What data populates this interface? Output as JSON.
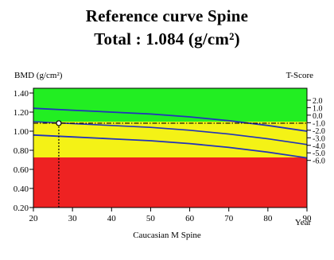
{
  "header": {
    "title": "Reference curve Spine",
    "subtitle": "Total :  1.084 (g/cm²)"
  },
  "chart_data": {
    "type": "line",
    "title": "Reference curve Spine",
    "subtitle": "Total :  1.084 (g/cm²)",
    "ylabel": "BMD (g/cm²)",
    "y2label": "T-Score",
    "xlabel": "Year",
    "footer": "Caucasian M Spine",
    "xlim": [
      20,
      90
    ],
    "ylim": [
      0.2,
      1.45
    ],
    "x_ticks": [
      20,
      30,
      40,
      50,
      60,
      70,
      80,
      90
    ],
    "y_ticks": [
      0.2,
      0.4,
      0.6,
      0.8,
      1.0,
      1.2,
      1.4
    ],
    "y_tick_labels": [
      "0.20",
      "0.40",
      "0.60",
      "0.80",
      "1.00",
      "1.20",
      "1.40"
    ],
    "t_score_ticks": [
      {
        "bmd": 1.325,
        "label": "2.0"
      },
      {
        "bmd": 1.247,
        "label": "1.0"
      },
      {
        "bmd": 1.168,
        "label": "0.0"
      },
      {
        "bmd": 1.089,
        "label": "-1.0"
      },
      {
        "bmd": 1.01,
        "label": "-2.0"
      },
      {
        "bmd": 0.931,
        "label": "-3.0"
      },
      {
        "bmd": 0.852,
        "label": "-4.0"
      },
      {
        "bmd": 0.773,
        "label": "-5.0"
      },
      {
        "bmd": 0.694,
        "label": "-6.0"
      }
    ],
    "zones": [
      {
        "name": "normal",
        "color": "#22ee22"
      },
      {
        "name": "osteopenia",
        "color": "#f4f216"
      },
      {
        "name": "osteoporosis",
        "color": "#ee2222"
      }
    ],
    "zone_boundaries": {
      "x": [
        20,
        30,
        40,
        50,
        60,
        70,
        80,
        90
      ],
      "normal_lower": [
        1.1,
        1.1,
        1.1,
        1.1,
        1.1,
        1.1,
        1.1,
        1.1
      ],
      "osteoporosis_upper": [
        0.725,
        0.725,
        0.725,
        0.725,
        0.725,
        0.725,
        0.725,
        0.725
      ]
    },
    "series": [
      {
        "role": "upper",
        "color": "#2233bb",
        "x": [
          20,
          30,
          40,
          50,
          60,
          70,
          80,
          90
        ],
        "values": [
          1.24,
          1.22,
          1.2,
          1.18,
          1.15,
          1.11,
          1.06,
          1.0
        ]
      },
      {
        "role": "mean",
        "color": "#2233bb",
        "x": [
          20,
          30,
          40,
          50,
          60,
          70,
          80,
          90
        ],
        "values": [
          1.1,
          1.08,
          1.06,
          1.04,
          1.01,
          0.97,
          0.92,
          0.86
        ]
      },
      {
        "role": "lower",
        "color": "#2233bb",
        "x": [
          20,
          30,
          40,
          50,
          60,
          70,
          80,
          90
        ],
        "values": [
          0.96,
          0.94,
          0.92,
          0.9,
          0.87,
          0.83,
          0.78,
          0.72
        ]
      }
    ],
    "patient": {
      "age": 26.5,
      "bmd": 1.084
    },
    "line_colors": {
      "curve": "#2233bb",
      "marker": "#000000"
    }
  }
}
